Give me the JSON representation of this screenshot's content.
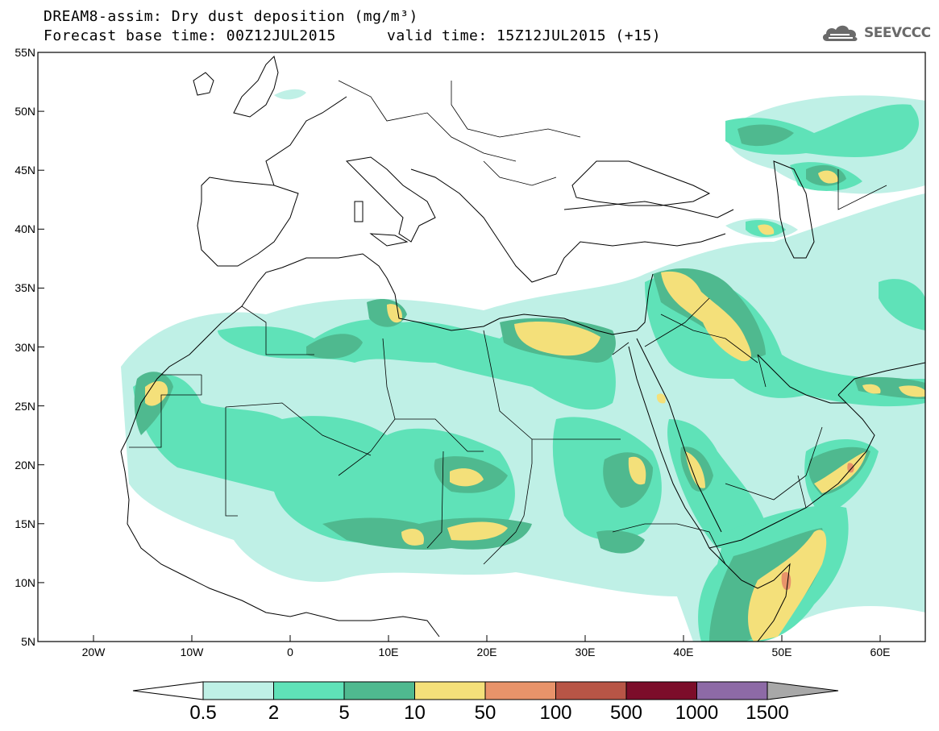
{
  "header": {
    "line1": "DREAM8-assim: Dry dust deposition (mg/m³)",
    "line2_base": "Forecast base time: 00Z12JUL2015",
    "line2_valid": "valid time: 15Z12JUL2015 (+15)"
  },
  "logo": {
    "text": "SEEVCCC",
    "icon": "cloud-icon"
  },
  "map": {
    "lat_labels": [
      "55N",
      "50N",
      "45N",
      "40N",
      "35N",
      "30N",
      "25N",
      "20N",
      "15N",
      "10N",
      "5N"
    ],
    "lon_labels": [
      "20W",
      "10W",
      "0",
      "10E",
      "20E",
      "30E",
      "40E",
      "50E",
      "60E"
    ],
    "ocean_color": "#ffffff",
    "border_color": "#000000"
  },
  "colorbar": {
    "labels": [
      "0.5",
      "2",
      "5",
      "10",
      "50",
      "100",
      "500",
      "1000",
      "1500"
    ],
    "colors": [
      "#ffffff",
      "#bff0e6",
      "#5fe2b8",
      "#4fb98f",
      "#f4e07a",
      "#e8936a",
      "#b85546",
      "#7c0d2a",
      "#8d6aa6",
      "#a8a8a8"
    ]
  }
}
